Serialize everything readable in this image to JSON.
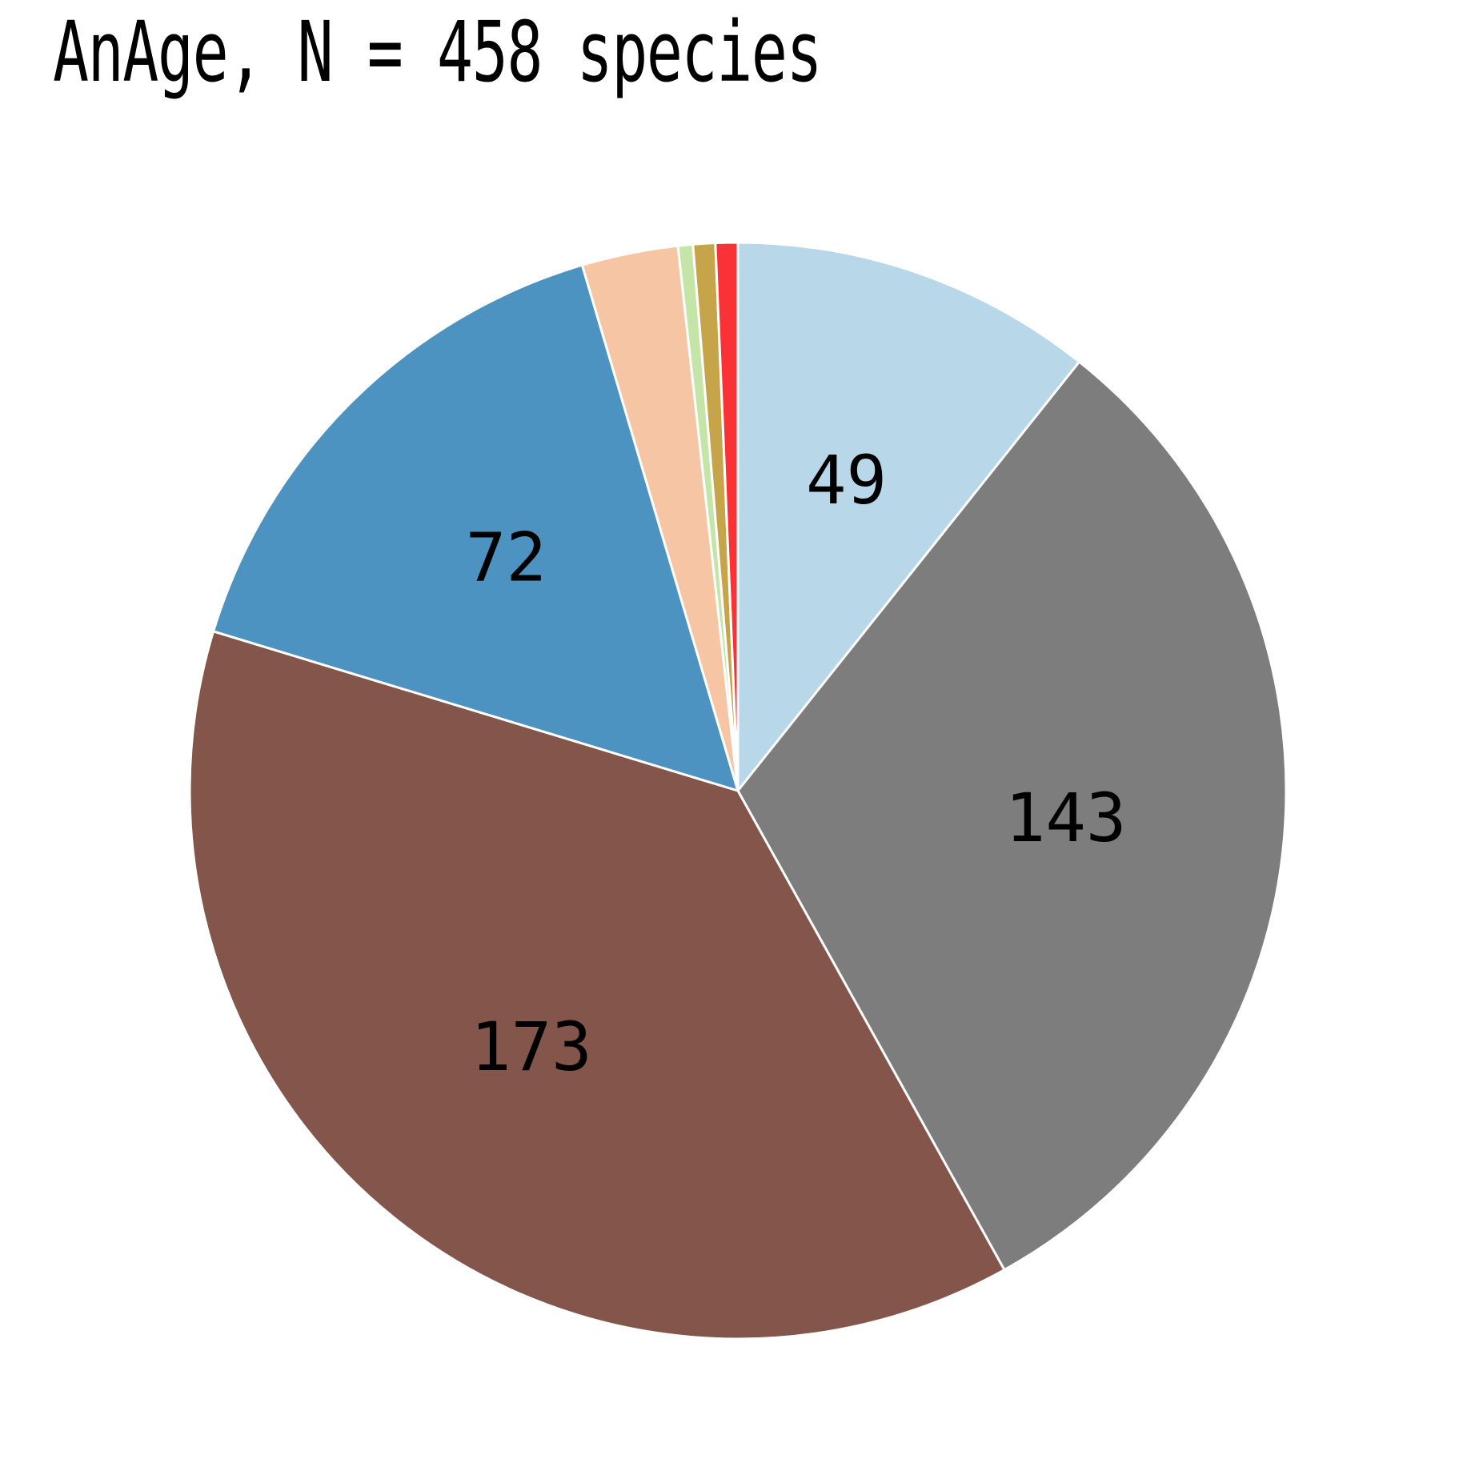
{
  "chart_data": {
    "type": "pie",
    "title": "AnAge, N = 458 species",
    "start_angle": "top (12 o'clock)",
    "direction": "clockwise",
    "slices": [
      {
        "value": 49,
        "label": "49",
        "color": "#b8d7e8"
      },
      {
        "value": 143,
        "label": "143",
        "color": "#7d7d7d"
      },
      {
        "value": 173,
        "label": "173",
        "color": "#83554b"
      },
      {
        "value": 72,
        "label": "72",
        "color": "#4c93c1"
      },
      {
        "value": 13,
        "label": "",
        "color": "#f6c5a4"
      },
      {
        "value": 2,
        "label": "",
        "color": "#c5e5a8"
      },
      {
        "value": 3,
        "label": "",
        "color": "#c6a44a"
      },
      {
        "value": 3,
        "label": "",
        "color": "#fa3236"
      }
    ],
    "slice_edge_color": "#ffffff",
    "legend": "none"
  }
}
